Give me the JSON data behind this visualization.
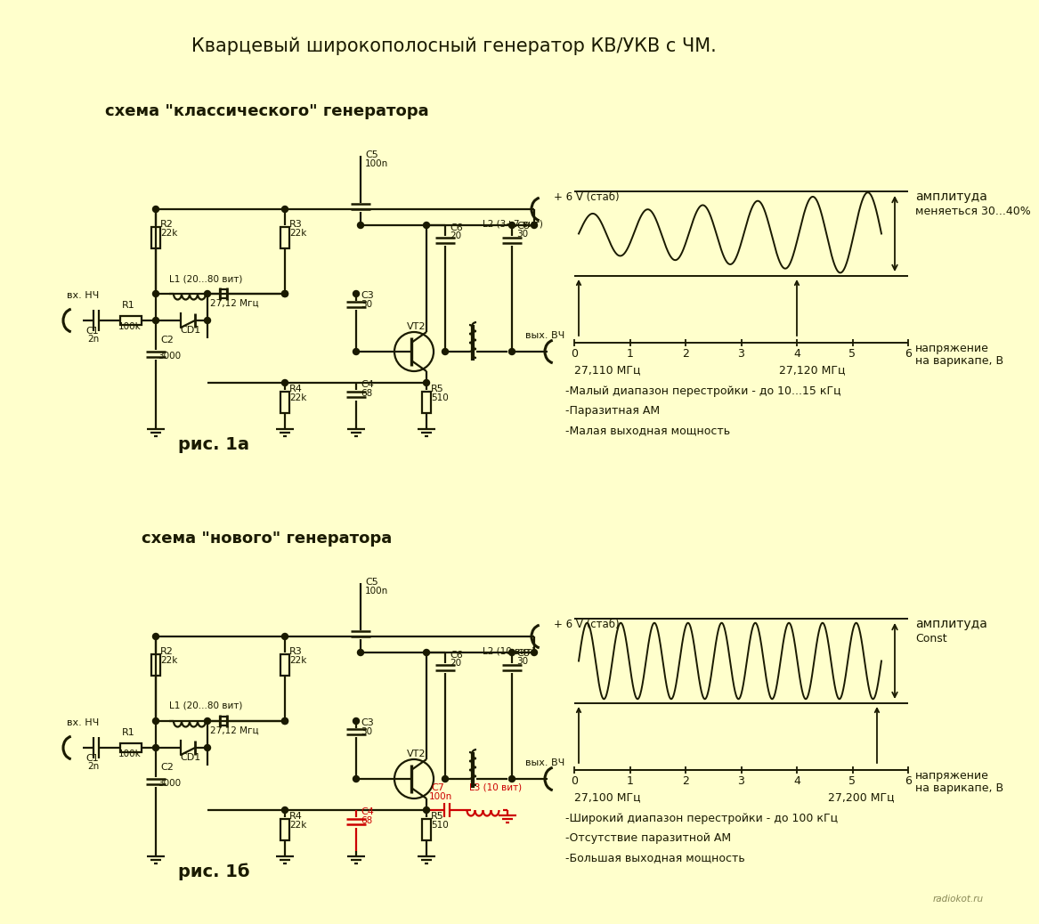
{
  "title": "Кварцевый широкополосный генератор КВ/УКВ с ЧМ.",
  "bg_color": "#FFFFCC",
  "circuit_color": "#1a1a00",
  "red_color": "#CC0000",
  "section1_title": "схема \"классического\" генератора",
  "section2_title": "схема \"нового\" генератора",
  "caption1": "рис. 1а",
  "caption2": "рис. 1б",
  "notes1": [
    "-Малый диапазон перестройки - до 10...15 кГц",
    "-Паразитная АМ",
    "-Малая выходная мощность"
  ],
  "notes2": [
    "-Широкий диапазон перестройки - до 100 кГц",
    "-Отсутствие паразитной АМ",
    "-Большая выходная мощность"
  ],
  "wave1_label_left": "27,110 МГц",
  "wave1_label_right": "27,120 МГц",
  "wave2_label_left": "27,100 МГц",
  "wave2_label_right": "27,200 МГц",
  "amplitude_label1": [
    "амплитуда",
    "меняеться 30...40%"
  ],
  "amplitude_label2": [
    "амплитуда",
    "Const"
  ],
  "axis_label1": "напряжение",
  "axis_label2": "на варикапе, В",
  "supply_label": "+ 6 V (стаб)",
  "output_label": "вых. ВЧ",
  "input_label": "вх. НЧ",
  "watermark": "radiokot.ru"
}
